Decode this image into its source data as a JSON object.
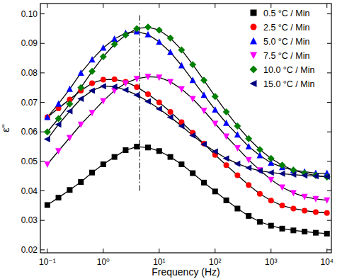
{
  "chart_data": {
    "type": "scatter",
    "x_label": "Frequency (Hz)",
    "y_label": "ε''",
    "log": "x",
    "legend": "upper right",
    "grid": false,
    "xlim": [
      0.075,
      12000
    ],
    "ylim": [
      0.019,
      0.1035
    ],
    "xticks": [
      {
        "value": 0.1,
        "label": "10⁻¹"
      },
      {
        "value": 1,
        "label": "10⁰"
      },
      {
        "value": 10,
        "label": "10¹"
      },
      {
        "value": 100,
        "label": "10²"
      },
      {
        "value": 1000,
        "label": "10³"
      },
      {
        "value": 10000,
        "label": "10⁴"
      }
    ],
    "yticks": [
      0.02,
      0.03,
      0.04,
      0.05,
      0.06,
      0.07,
      0.08,
      0.09,
      {
        "value": 0.1,
        "label": "0.10"
      }
    ],
    "x": [
      0.1,
      0.158,
      0.251,
      0.398,
      0.631,
      1,
      1.585,
      2.512,
      3.981,
      6.31,
      10,
      15.85,
      25.12,
      39.81,
      63.1,
      100,
      158.5,
      251.2,
      398.1,
      631,
      1000,
      1585,
      2512,
      3981,
      6310,
      10000
    ],
    "reference_line": {
      "x": 4.5,
      "ymin": 0.04,
      "ymax": 0.1,
      "line_style": "dashdot"
    },
    "series": [
      {
        "name": "0.5 °C / Min",
        "color": "#000000",
        "marker": "square",
        "line_style": "solid",
        "values": [
          0.0352,
          0.0377,
          0.0403,
          0.043,
          0.0462,
          0.049,
          0.0515,
          0.0538,
          0.055,
          0.0547,
          0.0535,
          0.0515,
          0.049,
          0.046,
          0.0428,
          0.0398,
          0.0368,
          0.034,
          0.0315,
          0.0295,
          0.0282,
          0.0272,
          0.0266,
          0.0262,
          0.0258,
          0.0255
        ]
      },
      {
        "name": "2.5 °C / Min",
        "color": "#ff0000",
        "marker": "circle",
        "line_style": "solid",
        "values": [
          0.065,
          0.068,
          0.071,
          0.074,
          0.0765,
          0.0777,
          0.0778,
          0.077,
          0.0752,
          0.0728,
          0.07,
          0.0668,
          0.0633,
          0.0597,
          0.056,
          0.0522,
          0.0487,
          0.0453,
          0.042,
          0.039,
          0.0367,
          0.035,
          0.034,
          0.0333,
          0.0328,
          0.0325
        ]
      },
      {
        "name": "5.0 °C / Min",
        "color": "#0000ff",
        "marker": "triangle-up",
        "line_style": "solid",
        "values": [
          0.065,
          0.0695,
          0.0745,
          0.08,
          0.0845,
          0.0885,
          0.0915,
          0.0935,
          0.094,
          0.093,
          0.0905,
          0.087,
          0.0825,
          0.0775,
          0.0725,
          0.0675,
          0.063,
          0.059,
          0.055,
          0.052,
          0.0495,
          0.048,
          0.047,
          0.0465,
          0.046,
          0.046
        ]
      },
      {
        "name": "7.5 °C / Min",
        "color": "#ff00ff",
        "marker": "triangle-down",
        "line_style": "solid",
        "values": [
          0.049,
          0.0535,
          0.058,
          0.0625,
          0.0665,
          0.0705,
          0.074,
          0.0765,
          0.078,
          0.0787,
          0.0785,
          0.077,
          0.0745,
          0.0712,
          0.0672,
          0.0628,
          0.0585,
          0.0545,
          0.0505,
          0.047,
          0.0438,
          0.0412,
          0.0393,
          0.038,
          0.0373,
          0.0368
        ]
      },
      {
        "name": "10.0 °C / Min",
        "color": "#008000",
        "marker": "diamond",
        "line_style": "solid",
        "values": [
          0.06,
          0.0645,
          0.0695,
          0.075,
          0.0805,
          0.0855,
          0.0897,
          0.0928,
          0.095,
          0.0955,
          0.0945,
          0.0918,
          0.0878,
          0.0828,
          0.0775,
          0.072,
          0.0668,
          0.062,
          0.0577,
          0.054,
          0.051,
          0.0487,
          0.047,
          0.046,
          0.0452,
          0.0447
        ]
      },
      {
        "name": "15.0 °C / Min",
        "color": "#000080",
        "marker": "triangle-left",
        "line_style": "solid",
        "values": [
          0.0575,
          0.0625,
          0.067,
          0.0712,
          0.074,
          0.0755,
          0.0753,
          0.0742,
          0.0725,
          0.0703,
          0.0678,
          0.065,
          0.062,
          0.0588,
          0.0558,
          0.0533,
          0.051,
          0.0492,
          0.0478,
          0.0468,
          0.0462,
          0.0458,
          0.0455,
          0.0452,
          0.045,
          0.0448
        ]
      }
    ]
  }
}
